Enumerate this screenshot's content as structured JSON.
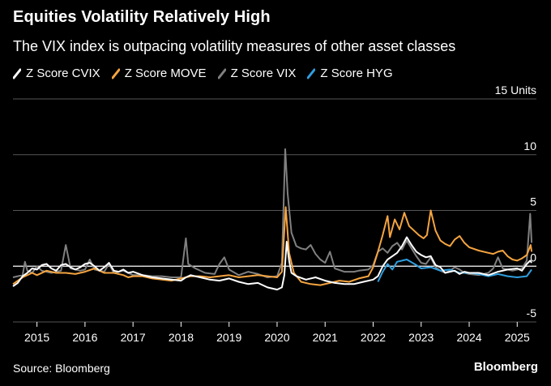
{
  "header": {
    "title": "Equities Volatility Relatively High",
    "subtitle": "The VIX index is outpacing volatility measures of other asset classes"
  },
  "footer": {
    "source": "Source: Bloomberg",
    "brand": "Bloomberg"
  },
  "chart_data": {
    "type": "line",
    "title": "Equities Volatility Relatively High",
    "subtitle": "The VIX index is outpacing volatility measures of other asset classes",
    "ylabel": "",
    "unit_label": "15 Units",
    "ylim": [
      -5,
      15
    ],
    "y_ticks": [
      {
        "value": 15,
        "label": "15 Units"
      },
      {
        "value": 10,
        "label": "10"
      },
      {
        "value": 5,
        "label": "5"
      },
      {
        "value": 0,
        "label": "0"
      },
      {
        "value": -5,
        "label": "-5"
      }
    ],
    "xlim": [
      2014.5,
      2025.4
    ],
    "x_ticks": [
      2015,
      2016,
      2017,
      2018,
      2019,
      2020,
      2021,
      2022,
      2023,
      2024,
      2025
    ],
    "grid": true,
    "legend_position": "top-left",
    "series": [
      {
        "name": "Z Score CVIX",
        "color": "#ffffff",
        "points": [
          [
            2014.5,
            -1.8
          ],
          [
            2014.6,
            -1.5
          ],
          [
            2014.7,
            -0.9
          ],
          [
            2014.8,
            -0.6
          ],
          [
            2014.9,
            -0.2
          ],
          [
            2015.0,
            -0.3
          ],
          [
            2015.1,
            0.1
          ],
          [
            2015.2,
            0.2
          ],
          [
            2015.3,
            -0.2
          ],
          [
            2015.4,
            -0.4
          ],
          [
            2015.5,
            0.1
          ],
          [
            2015.6,
            0.2
          ],
          [
            2015.7,
            -0.1
          ],
          [
            2015.8,
            -0.3
          ],
          [
            2015.9,
            -0.1
          ],
          [
            2016.0,
            0.2
          ],
          [
            2016.1,
            0.3
          ],
          [
            2016.2,
            0.0
          ],
          [
            2016.3,
            -0.4
          ],
          [
            2016.4,
            -0.1
          ],
          [
            2016.5,
            0.3
          ],
          [
            2016.6,
            -0.4
          ],
          [
            2016.7,
            -0.5
          ],
          [
            2016.8,
            -0.3
          ],
          [
            2016.9,
            -0.6
          ],
          [
            2017.0,
            -0.5
          ],
          [
            2017.2,
            -0.8
          ],
          [
            2017.4,
            -1.0
          ],
          [
            2017.6,
            -1.1
          ],
          [
            2017.8,
            -1.2
          ],
          [
            2018.0,
            -1.3
          ],
          [
            2018.1,
            -1.0
          ],
          [
            2018.2,
            -0.8
          ],
          [
            2018.4,
            -1.0
          ],
          [
            2018.6,
            -1.2
          ],
          [
            2018.8,
            -1.3
          ],
          [
            2019.0,
            -1.1
          ],
          [
            2019.2,
            -1.4
          ],
          [
            2019.4,
            -1.6
          ],
          [
            2019.6,
            -1.5
          ],
          [
            2019.8,
            -1.9
          ],
          [
            2020.0,
            -2.1
          ],
          [
            2020.1,
            -1.9
          ],
          [
            2020.15,
            -0.8
          ],
          [
            2020.2,
            2.2
          ],
          [
            2020.25,
            0.5
          ],
          [
            2020.3,
            -0.6
          ],
          [
            2020.4,
            -0.9
          ],
          [
            2020.6,
            -1.2
          ],
          [
            2020.8,
            -1.0
          ],
          [
            2021.0,
            -1.3
          ],
          [
            2021.2,
            -1.5
          ],
          [
            2021.4,
            -1.6
          ],
          [
            2021.6,
            -1.6
          ],
          [
            2021.8,
            -1.4
          ],
          [
            2022.0,
            -1.2
          ],
          [
            2022.1,
            -0.9
          ],
          [
            2022.2,
            0.0
          ],
          [
            2022.3,
            0.6
          ],
          [
            2022.4,
            0.9
          ],
          [
            2022.5,
            1.2
          ],
          [
            2022.6,
            1.8
          ],
          [
            2022.7,
            2.6
          ],
          [
            2022.8,
            1.9
          ],
          [
            2022.9,
            1.3
          ],
          [
            2023.0,
            1.0
          ],
          [
            2023.1,
            0.8
          ],
          [
            2023.2,
            0.9
          ],
          [
            2023.3,
            0.1
          ],
          [
            2023.4,
            -0.1
          ],
          [
            2023.5,
            -0.6
          ],
          [
            2023.6,
            -0.5
          ],
          [
            2023.7,
            -0.4
          ],
          [
            2023.8,
            -0.7
          ],
          [
            2023.9,
            -0.5
          ],
          [
            2024.0,
            -0.6
          ],
          [
            2024.2,
            -0.6
          ],
          [
            2024.4,
            -0.8
          ],
          [
            2024.6,
            -0.5
          ],
          [
            2024.8,
            -0.3
          ],
          [
            2025.0,
            -0.2
          ],
          [
            2025.1,
            -0.4
          ],
          [
            2025.2,
            0.2
          ],
          [
            2025.27,
            0.5
          ],
          [
            2025.3,
            0.3
          ]
        ]
      },
      {
        "name": "Z Score MOVE",
        "color": "#f5a440",
        "points": [
          [
            2014.5,
            -1.6
          ],
          [
            2014.7,
            -1.0
          ],
          [
            2014.9,
            -0.6
          ],
          [
            2015.0,
            -0.8
          ],
          [
            2015.2,
            -0.4
          ],
          [
            2015.4,
            -0.6
          ],
          [
            2015.6,
            -0.6
          ],
          [
            2015.8,
            -0.7
          ],
          [
            2016.0,
            -0.5
          ],
          [
            2016.2,
            -0.2
          ],
          [
            2016.4,
            -0.6
          ],
          [
            2016.6,
            -0.6
          ],
          [
            2016.8,
            -0.8
          ],
          [
            2016.9,
            -1.0
          ],
          [
            2017.0,
            -0.9
          ],
          [
            2017.2,
            -0.9
          ],
          [
            2017.4,
            -1.1
          ],
          [
            2017.6,
            -1.2
          ],
          [
            2017.8,
            -1.3
          ],
          [
            2018.0,
            -1.1
          ],
          [
            2018.2,
            -0.9
          ],
          [
            2018.4,
            -0.9
          ],
          [
            2018.6,
            -1.0
          ],
          [
            2018.8,
            -0.9
          ],
          [
            2019.0,
            -0.8
          ],
          [
            2019.2,
            -1.0
          ],
          [
            2019.4,
            -0.9
          ],
          [
            2019.6,
            -0.8
          ],
          [
            2019.8,
            -0.9
          ],
          [
            2020.0,
            -1.0
          ],
          [
            2020.1,
            -0.5
          ],
          [
            2020.18,
            5.3
          ],
          [
            2020.25,
            1.2
          ],
          [
            2020.35,
            -0.6
          ],
          [
            2020.5,
            -1.4
          ],
          [
            2020.7,
            -1.6
          ],
          [
            2020.9,
            -1.7
          ],
          [
            2021.1,
            -1.5
          ],
          [
            2021.3,
            -1.3
          ],
          [
            2021.5,
            -1.4
          ],
          [
            2021.7,
            -1.1
          ],
          [
            2021.9,
            -0.9
          ],
          [
            2022.0,
            -0.1
          ],
          [
            2022.1,
            1.3
          ],
          [
            2022.2,
            2.8
          ],
          [
            2022.3,
            4.5
          ],
          [
            2022.35,
            2.6
          ],
          [
            2022.45,
            4.2
          ],
          [
            2022.55,
            3.3
          ],
          [
            2022.65,
            4.8
          ],
          [
            2022.75,
            3.6
          ],
          [
            2022.85,
            3.2
          ],
          [
            2022.95,
            2.8
          ],
          [
            2023.05,
            2.5
          ],
          [
            2023.12,
            2.8
          ],
          [
            2023.2,
            5.0
          ],
          [
            2023.3,
            3.2
          ],
          [
            2023.4,
            2.3
          ],
          [
            2023.5,
            2.0
          ],
          [
            2023.6,
            1.8
          ],
          [
            2023.7,
            2.4
          ],
          [
            2023.8,
            2.7
          ],
          [
            2023.9,
            2.1
          ],
          [
            2024.0,
            1.7
          ],
          [
            2024.2,
            1.4
          ],
          [
            2024.4,
            1.2
          ],
          [
            2024.5,
            1.1
          ],
          [
            2024.6,
            1.3
          ],
          [
            2024.7,
            1.4
          ],
          [
            2024.8,
            0.9
          ],
          [
            2024.9,
            0.6
          ],
          [
            2025.0,
            0.5
          ],
          [
            2025.1,
            0.7
          ],
          [
            2025.2,
            1.0
          ],
          [
            2025.28,
            1.9
          ],
          [
            2025.3,
            1.3
          ]
        ]
      },
      {
        "name": "Z Score VIX",
        "color": "#808080",
        "points": [
          [
            2014.5,
            -1.0
          ],
          [
            2014.6,
            -0.9
          ],
          [
            2014.7,
            -0.8
          ],
          [
            2014.75,
            0.4
          ],
          [
            2014.8,
            -0.4
          ],
          [
            2014.9,
            -0.6
          ],
          [
            2015.0,
            0.0
          ],
          [
            2015.1,
            -0.4
          ],
          [
            2015.3,
            -0.6
          ],
          [
            2015.5,
            -0.4
          ],
          [
            2015.6,
            1.9
          ],
          [
            2015.7,
            -0.2
          ],
          [
            2015.9,
            -0.4
          ],
          [
            2016.0,
            -0.3
          ],
          [
            2016.1,
            0.6
          ],
          [
            2016.2,
            -0.3
          ],
          [
            2016.4,
            -0.5
          ],
          [
            2016.5,
            0.2
          ],
          [
            2016.6,
            -0.6
          ],
          [
            2016.8,
            -0.4
          ],
          [
            2016.9,
            -0.6
          ],
          [
            2017.0,
            -0.8
          ],
          [
            2017.2,
            -0.8
          ],
          [
            2017.4,
            -0.9
          ],
          [
            2017.6,
            -0.9
          ],
          [
            2017.8,
            -1.0
          ],
          [
            2018.0,
            -1.0
          ],
          [
            2018.1,
            2.5
          ],
          [
            2018.15,
            0.2
          ],
          [
            2018.3,
            -0.2
          ],
          [
            2018.5,
            -0.6
          ],
          [
            2018.7,
            -0.7
          ],
          [
            2018.8,
            0.2
          ],
          [
            2018.9,
            0.8
          ],
          [
            2019.0,
            -0.3
          ],
          [
            2019.2,
            -0.8
          ],
          [
            2019.4,
            -0.5
          ],
          [
            2019.6,
            -0.7
          ],
          [
            2019.8,
            -1.0
          ],
          [
            2020.0,
            -0.9
          ],
          [
            2020.1,
            0.3
          ],
          [
            2020.17,
            10.5
          ],
          [
            2020.22,
            6.5
          ],
          [
            2020.3,
            3.0
          ],
          [
            2020.4,
            1.8
          ],
          [
            2020.5,
            1.6
          ],
          [
            2020.6,
            1.5
          ],
          [
            2020.7,
            1.9
          ],
          [
            2020.8,
            1.1
          ],
          [
            2020.9,
            0.6
          ],
          [
            2021.0,
            0.3
          ],
          [
            2021.1,
            1.3
          ],
          [
            2021.2,
            -0.2
          ],
          [
            2021.4,
            -0.5
          ],
          [
            2021.6,
            -0.5
          ],
          [
            2021.7,
            -0.4
          ],
          [
            2021.9,
            -0.3
          ],
          [
            2022.0,
            0.1
          ],
          [
            2022.1,
            1.3
          ],
          [
            2022.2,
            1.6
          ],
          [
            2022.3,
            1.2
          ],
          [
            2022.4,
            1.8
          ],
          [
            2022.5,
            2.1
          ],
          [
            2022.6,
            1.5
          ],
          [
            2022.7,
            2.3
          ],
          [
            2022.8,
            1.6
          ],
          [
            2022.9,
            0.9
          ],
          [
            2023.0,
            0.3
          ],
          [
            2023.1,
            0.2
          ],
          [
            2023.2,
            0.8
          ],
          [
            2023.3,
            -0.1
          ],
          [
            2023.4,
            -0.4
          ],
          [
            2023.5,
            -0.6
          ],
          [
            2023.6,
            -0.4
          ],
          [
            2023.7,
            -0.1
          ],
          [
            2023.8,
            -0.3
          ],
          [
            2023.9,
            -0.6
          ],
          [
            2024.0,
            -0.7
          ],
          [
            2024.2,
            -0.8
          ],
          [
            2024.4,
            -0.6
          ],
          [
            2024.5,
            -0.2
          ],
          [
            2024.6,
            0.8
          ],
          [
            2024.7,
            -0.2
          ],
          [
            2024.9,
            -0.4
          ],
          [
            2025.0,
            -0.3
          ],
          [
            2025.1,
            -0.2
          ],
          [
            2025.2,
            0.5
          ],
          [
            2025.27,
            4.7
          ],
          [
            2025.3,
            2.1
          ]
        ]
      },
      {
        "name": "Z Score HYG",
        "color": "#2f9fe0",
        "points": [
          [
            2022.1,
            -1.4
          ],
          [
            2022.2,
            -0.5
          ],
          [
            2022.3,
            0.2
          ],
          [
            2022.4,
            -0.3
          ],
          [
            2022.5,
            0.4
          ],
          [
            2022.7,
            0.6
          ],
          [
            2022.9,
            0.1
          ],
          [
            2023.0,
            -0.2
          ],
          [
            2023.2,
            -0.1
          ],
          [
            2023.4,
            -0.4
          ],
          [
            2023.6,
            -0.3
          ],
          [
            2023.8,
            -0.6
          ],
          [
            2024.0,
            -0.6
          ],
          [
            2024.2,
            -0.7
          ],
          [
            2024.4,
            -0.9
          ],
          [
            2024.6,
            -0.7
          ],
          [
            2024.8,
            -0.9
          ],
          [
            2025.0,
            -1.0
          ],
          [
            2025.2,
            -0.9
          ],
          [
            2025.3,
            -0.3
          ]
        ]
      }
    ]
  }
}
